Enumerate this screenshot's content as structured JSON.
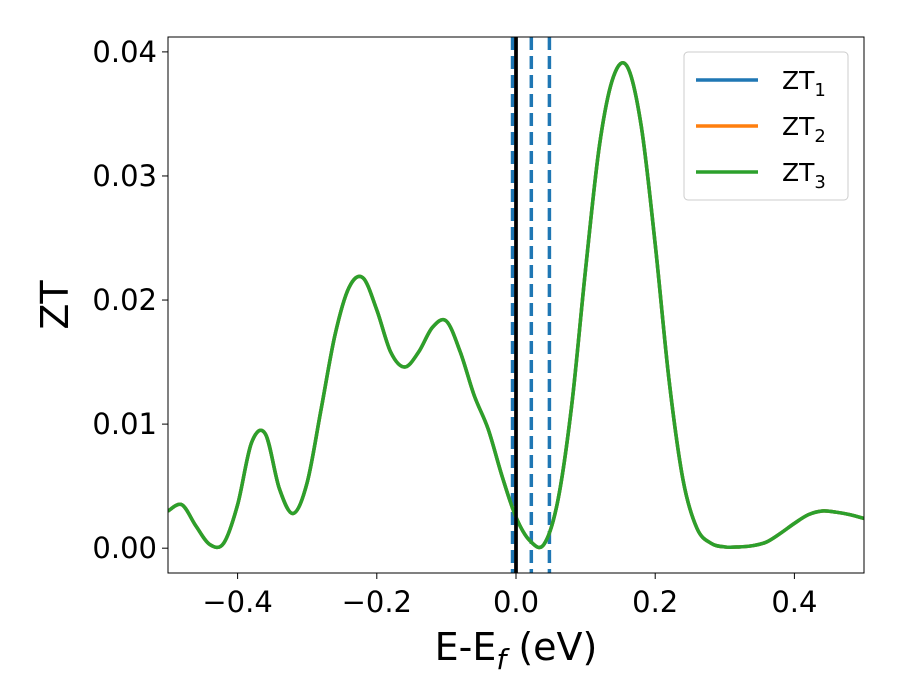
{
  "chart_data": {
    "type": "line",
    "xlabel": {
      "main": "E-E",
      "sub": "f",
      "tail": " (eV)"
    },
    "ylabel": "ZT",
    "xlim": [
      -0.5,
      0.5
    ],
    "ylim": [
      -0.002,
      0.0412
    ],
    "xticks": [
      {
        "value": -0.4,
        "label": "−0.4"
      },
      {
        "value": -0.2,
        "label": "−0.2"
      },
      {
        "value": 0.0,
        "label": "0.0"
      },
      {
        "value": 0.2,
        "label": "0.2"
      },
      {
        "value": 0.4,
        "label": "0.4"
      }
    ],
    "yticks": [
      {
        "value": 0.0,
        "label": "0.00"
      },
      {
        "value": 0.01,
        "label": "0.01"
      },
      {
        "value": 0.02,
        "label": "0.02"
      },
      {
        "value": 0.03,
        "label": "0.03"
      },
      {
        "value": 0.04,
        "label": "0.04"
      }
    ],
    "grid": false,
    "legend_position": "top-right",
    "series": [
      {
        "label": {
          "main": "ZT",
          "sub": "1"
        },
        "color": "#1f77b4",
        "x": [
          -0.5,
          -0.48,
          -0.46,
          -0.44,
          -0.42,
          -0.4,
          -0.38,
          -0.36,
          -0.34,
          -0.32,
          -0.3,
          -0.28,
          -0.26,
          -0.24,
          -0.22,
          -0.2,
          -0.18,
          -0.16,
          -0.14,
          -0.12,
          -0.1,
          -0.08,
          -0.06,
          -0.04,
          -0.02,
          0.0,
          0.02,
          0.04,
          0.06,
          0.08,
          0.1,
          0.12,
          0.14,
          0.16,
          0.18,
          0.2,
          0.22,
          0.24,
          0.26,
          0.28,
          0.3,
          0.32,
          0.34,
          0.36,
          0.38,
          0.4,
          0.42,
          0.44,
          0.46,
          0.48,
          0.5
        ],
        "y": [
          0.003,
          0.0035,
          0.0018,
          0.0003,
          0.0004,
          0.0035,
          0.0085,
          0.0092,
          0.0048,
          0.0028,
          0.0053,
          0.0112,
          0.0172,
          0.021,
          0.0218,
          0.0192,
          0.0158,
          0.0146,
          0.0158,
          0.0178,
          0.0183,
          0.0158,
          0.0123,
          0.0096,
          0.0058,
          0.0025,
          0.0006,
          0.0003,
          0.0038,
          0.0115,
          0.0225,
          0.0325,
          0.038,
          0.0388,
          0.034,
          0.0245,
          0.0135,
          0.0055,
          0.0016,
          0.0004,
          0.0001,
          0.0001,
          0.0002,
          0.0005,
          0.0012,
          0.002,
          0.0027,
          0.003,
          0.0029,
          0.0027,
          0.0024
        ]
      },
      {
        "label": {
          "main": "ZT",
          "sub": "2"
        },
        "color": "#ff7f0e",
        "x": [
          -0.5,
          -0.48,
          -0.46,
          -0.44,
          -0.42,
          -0.4,
          -0.38,
          -0.36,
          -0.34,
          -0.32,
          -0.3,
          -0.28,
          -0.26,
          -0.24,
          -0.22,
          -0.2,
          -0.18,
          -0.16,
          -0.14,
          -0.12,
          -0.1,
          -0.08,
          -0.06,
          -0.04,
          -0.02,
          0.0,
          0.02,
          0.04,
          0.06,
          0.08,
          0.1,
          0.12,
          0.14,
          0.16,
          0.18,
          0.2,
          0.22,
          0.24,
          0.26,
          0.28,
          0.3,
          0.32,
          0.34,
          0.36,
          0.38,
          0.4,
          0.42,
          0.44,
          0.46,
          0.48,
          0.5
        ],
        "y": [
          0.003,
          0.0035,
          0.0018,
          0.0003,
          0.0004,
          0.0035,
          0.0085,
          0.0092,
          0.0048,
          0.0028,
          0.0053,
          0.0112,
          0.0172,
          0.021,
          0.0218,
          0.0192,
          0.0158,
          0.0146,
          0.0158,
          0.0178,
          0.0183,
          0.0158,
          0.0123,
          0.0096,
          0.0058,
          0.0025,
          0.0006,
          0.0003,
          0.0038,
          0.0115,
          0.0225,
          0.0325,
          0.038,
          0.0388,
          0.034,
          0.0245,
          0.0135,
          0.0055,
          0.0016,
          0.0004,
          0.0001,
          0.0001,
          0.0002,
          0.0005,
          0.0012,
          0.002,
          0.0027,
          0.003,
          0.0029,
          0.0027,
          0.0024
        ]
      },
      {
        "label": {
          "main": "ZT",
          "sub": "3"
        },
        "color": "#2ca02c",
        "x": [
          -0.5,
          -0.48,
          -0.46,
          -0.44,
          -0.42,
          -0.4,
          -0.38,
          -0.36,
          -0.34,
          -0.32,
          -0.3,
          -0.28,
          -0.26,
          -0.24,
          -0.22,
          -0.2,
          -0.18,
          -0.16,
          -0.14,
          -0.12,
          -0.1,
          -0.08,
          -0.06,
          -0.04,
          -0.02,
          0.0,
          0.02,
          0.04,
          0.06,
          0.08,
          0.1,
          0.12,
          0.14,
          0.16,
          0.18,
          0.2,
          0.22,
          0.24,
          0.26,
          0.28,
          0.3,
          0.32,
          0.34,
          0.36,
          0.38,
          0.4,
          0.42,
          0.44,
          0.46,
          0.48,
          0.5
        ],
        "y": [
          0.003,
          0.0035,
          0.0018,
          0.0003,
          0.0004,
          0.0035,
          0.0085,
          0.0092,
          0.0048,
          0.0028,
          0.0053,
          0.0112,
          0.0172,
          0.021,
          0.0218,
          0.0192,
          0.0158,
          0.0146,
          0.0158,
          0.0178,
          0.0183,
          0.0158,
          0.0123,
          0.0096,
          0.0058,
          0.0025,
          0.0006,
          0.0003,
          0.0038,
          0.0115,
          0.0225,
          0.0325,
          0.038,
          0.0388,
          0.034,
          0.0245,
          0.0135,
          0.0055,
          0.0016,
          0.0004,
          0.0001,
          0.0001,
          0.0002,
          0.0005,
          0.0012,
          0.002,
          0.0027,
          0.003,
          0.0029,
          0.0027,
          0.0024
        ]
      }
    ],
    "vertical_lines": [
      {
        "x": -0.005,
        "style": "dashed",
        "color": "#1f77b4"
      },
      {
        "x": 0.022,
        "style": "dashed",
        "color": "#1f77b4"
      },
      {
        "x": 0.048,
        "style": "dashed",
        "color": "#1f77b4"
      },
      {
        "x": 0.0,
        "style": "solid",
        "color": "#000000"
      }
    ]
  }
}
